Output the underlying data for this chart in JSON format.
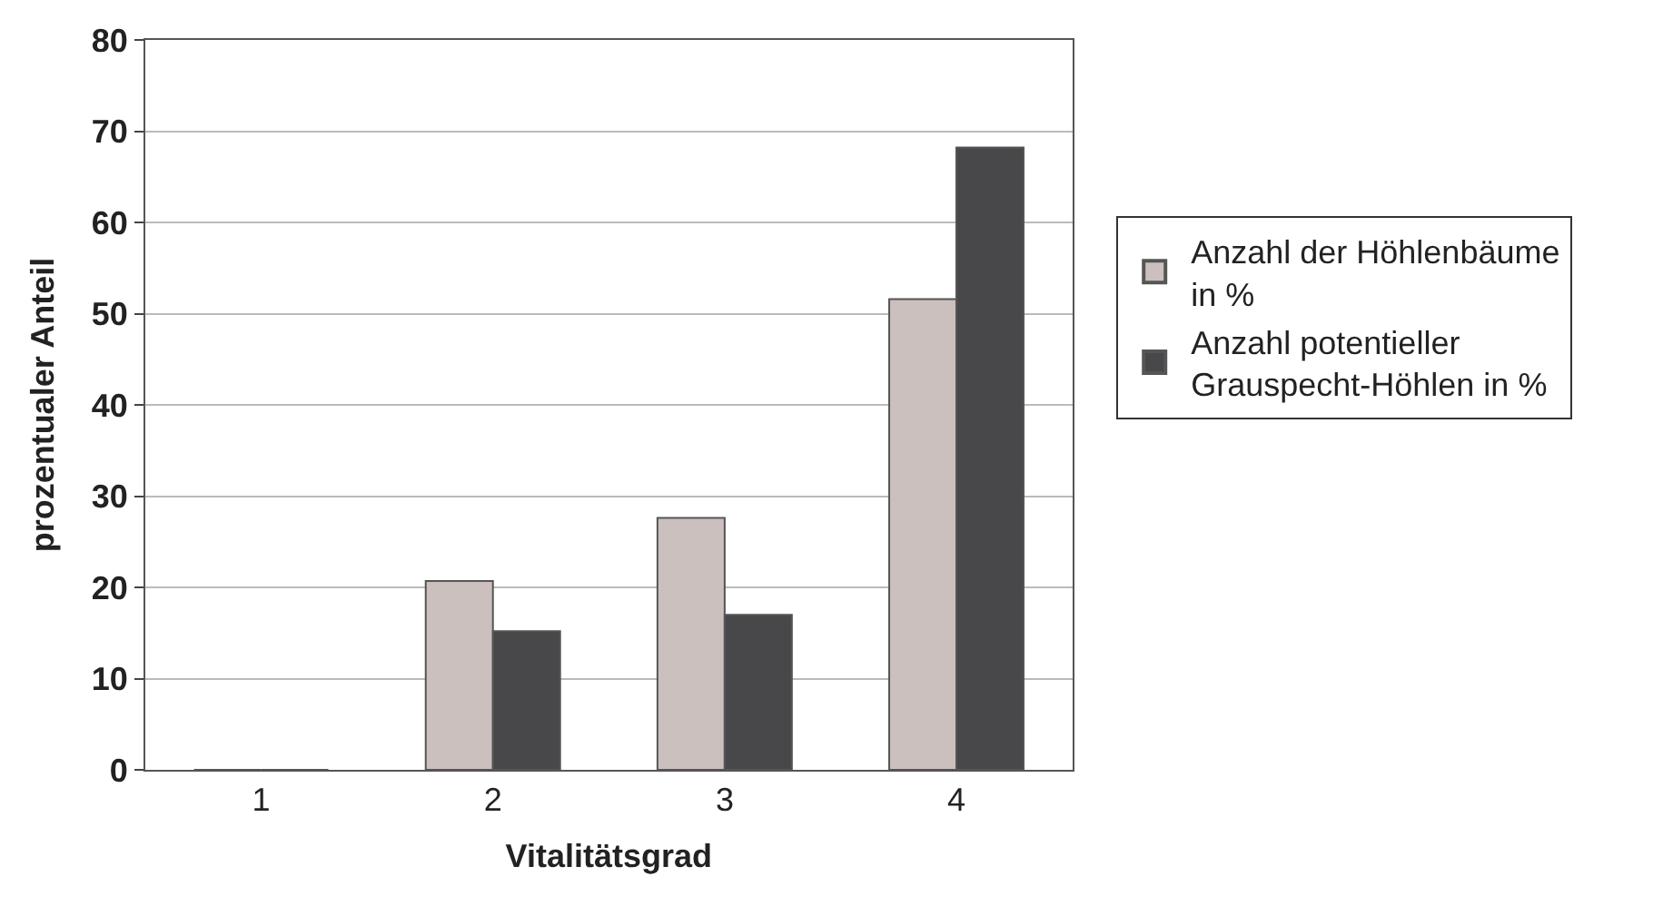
{
  "chart_data": {
    "type": "bar",
    "xlabel": "Vitalitätsgrad",
    "ylabel": "prozentualer Anteil",
    "categories": [
      "1",
      "2",
      "3",
      "4"
    ],
    "series": [
      {
        "name": "Anzahl der Höhlenbäume in %",
        "color": "#cbc0bd",
        "values": [
          0,
          20.7,
          27.6,
          51.6
        ]
      },
      {
        "name": "Anzahl potentieller Grauspecht-Höhlen in %",
        "color": "#48484a",
        "values": [
          0,
          15.2,
          17.0,
          68.2
        ]
      }
    ],
    "ylim": [
      0,
      80
    ],
    "yticks": [
      0,
      10,
      20,
      30,
      40,
      50,
      60,
      70,
      80
    ],
    "grid": "y",
    "legend": "right"
  }
}
